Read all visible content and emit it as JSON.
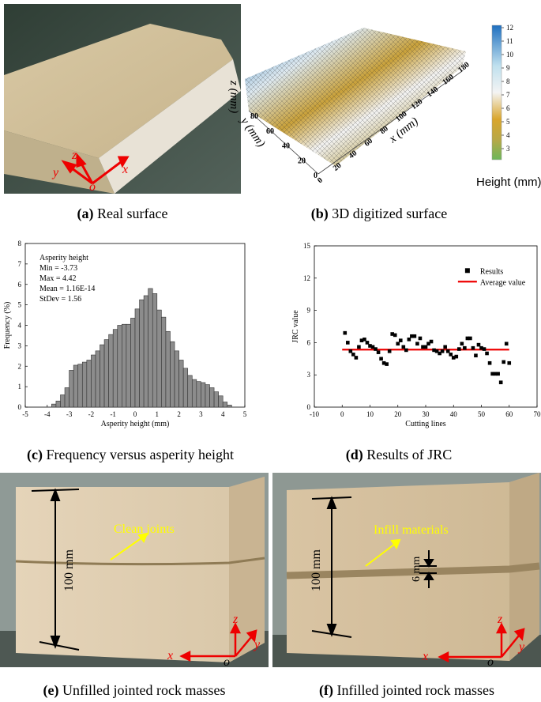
{
  "panels": {
    "a": {
      "caption_letter": "(a)",
      "caption_text": " Real surface",
      "axis_y": "y",
      "axis_z": "z",
      "axis_x": "x",
      "axis_o": "o"
    },
    "b": {
      "caption_letter": "(b)",
      "caption_text": " 3D digitized surface",
      "z_label": "z (mm)",
      "y_label": "y (mm)",
      "x_label": "x (mm)",
      "colorbar_label": "Height (mm)",
      "colorbar_ticks": [
        "12",
        "11",
        "10",
        "9",
        "8",
        "7",
        "6",
        "5",
        "4",
        "3"
      ],
      "x_ticks": [
        "0",
        "20",
        "40",
        "60",
        "80",
        "100",
        "120",
        "140",
        "160",
        "180"
      ],
      "y_ticks": [
        "0",
        "20",
        "40",
        "60",
        "80"
      ],
      "colors": {
        "high": "#1f6fbf",
        "mid": "#f2f2f2",
        "tan": "#c9a13a",
        "low": "#6cb65a"
      }
    },
    "c": {
      "caption_letter": "(c)",
      "caption_text": " Frequency versus asperity height"
    },
    "d": {
      "caption_letter": "(d)",
      "caption_text": " Results of JRC"
    },
    "e": {
      "caption_letter": "(e)",
      "caption_text": " Unfilled jointed rock masses",
      "dim_label": "100 mm",
      "annotation": "Clean joints",
      "axis_z": "z",
      "axis_x": "x",
      "axis_y": "y",
      "axis_o": "o"
    },
    "f": {
      "caption_letter": "(f)",
      "caption_text": " Infilled jointed rock masses",
      "dim_label": "100 mm",
      "annotation": "Infill materials",
      "thickness_label": "6 mm",
      "axis_z": "z",
      "axis_x": "x",
      "axis_y": "y",
      "axis_o": "o"
    }
  },
  "chart_data": [
    {
      "type": "bar",
      "xlabel": "Asperity height (mm)",
      "ylabel": "Frequency (%)",
      "xlim": [
        -5,
        5
      ],
      "ylim": [
        0,
        8
      ],
      "xticks": [
        -5,
        -4,
        -3,
        -2,
        -1,
        0,
        1,
        2,
        3,
        4,
        5
      ],
      "yticks": [
        0,
        1,
        2,
        3,
        4,
        5,
        6,
        7,
        8
      ],
      "annotations": [
        "Asperity height",
        "Min = -3.73",
        "Max = 4.42",
        "Mean = 1.16E-14",
        "StDev = 1.56"
      ],
      "bin_width": 0.2,
      "x": [
        -3.7,
        -3.5,
        -3.3,
        -3.1,
        -2.9,
        -2.7,
        -2.5,
        -2.3,
        -2.1,
        -1.9,
        -1.7,
        -1.5,
        -1.3,
        -1.1,
        -0.9,
        -0.7,
        -0.5,
        -0.3,
        -0.1,
        0.1,
        0.3,
        0.5,
        0.7,
        0.9,
        1.1,
        1.3,
        1.5,
        1.7,
        1.9,
        2.1,
        2.3,
        2.5,
        2.7,
        2.9,
        3.1,
        3.3,
        3.5,
        3.7,
        3.9,
        4.1,
        4.3
      ],
      "values": [
        0.15,
        0.3,
        0.6,
        0.95,
        1.8,
        2.05,
        2.1,
        2.2,
        2.3,
        2.55,
        2.75,
        3.05,
        3.3,
        3.55,
        3.8,
        4.0,
        4.05,
        4.05,
        4.35,
        4.8,
        5.25,
        5.45,
        5.8,
        5.55,
        4.75,
        4.4,
        3.7,
        3.2,
        2.75,
        2.3,
        1.9,
        1.55,
        1.35,
        1.25,
        1.2,
        1.1,
        0.95,
        0.75,
        0.55,
        0.25,
        0.1
      ]
    },
    {
      "type": "scatter",
      "xlabel": "Cutting lines",
      "ylabel": "JRC value",
      "xlim": [
        -10,
        70
      ],
      "ylim": [
        0,
        15
      ],
      "xticks": [
        -10,
        0,
        10,
        20,
        30,
        40,
        50,
        60,
        70
      ],
      "yticks": [
        0,
        3,
        6,
        9,
        12,
        15
      ],
      "legend": "top-right",
      "series": [
        {
          "name": "Results",
          "x": [
            1,
            2,
            3,
            4,
            5,
            6,
            7,
            8,
            9,
            10,
            11,
            12,
            13,
            14,
            15,
            16,
            17,
            18,
            19,
            20,
            21,
            22,
            23,
            24,
            25,
            26,
            27,
            28,
            29,
            30,
            31,
            32,
            33,
            34,
            35,
            36,
            37,
            38,
            39,
            40,
            41,
            42,
            43,
            44,
            45,
            46,
            47,
            48,
            49,
            50,
            51,
            52,
            53,
            54,
            55,
            56,
            57,
            58,
            59,
            60
          ],
          "values": [
            6.9,
            6.0,
            5.2,
            4.9,
            4.6,
            5.6,
            6.2,
            6.3,
            6.0,
            5.7,
            5.6,
            5.4,
            5.1,
            4.5,
            4.1,
            4.0,
            5.2,
            6.8,
            6.7,
            5.9,
            6.2,
            5.6,
            5.3,
            6.3,
            6.6,
            6.6,
            5.9,
            6.4,
            5.6,
            5.6,
            5.9,
            6.1,
            5.3,
            5.2,
            5.0,
            5.2,
            5.6,
            5.2,
            4.9,
            4.6,
            4.7,
            5.4,
            5.9,
            5.5,
            6.4,
            6.4,
            5.5,
            4.8,
            5.8,
            5.5,
            5.4,
            5.0,
            4.1,
            3.1,
            3.1,
            3.1,
            2.3,
            4.2,
            5.9,
            4.1
          ]
        },
        {
          "name": "Average value",
          "x": [
            0,
            60
          ],
          "values": [
            5.35,
            5.35
          ]
        }
      ]
    }
  ]
}
